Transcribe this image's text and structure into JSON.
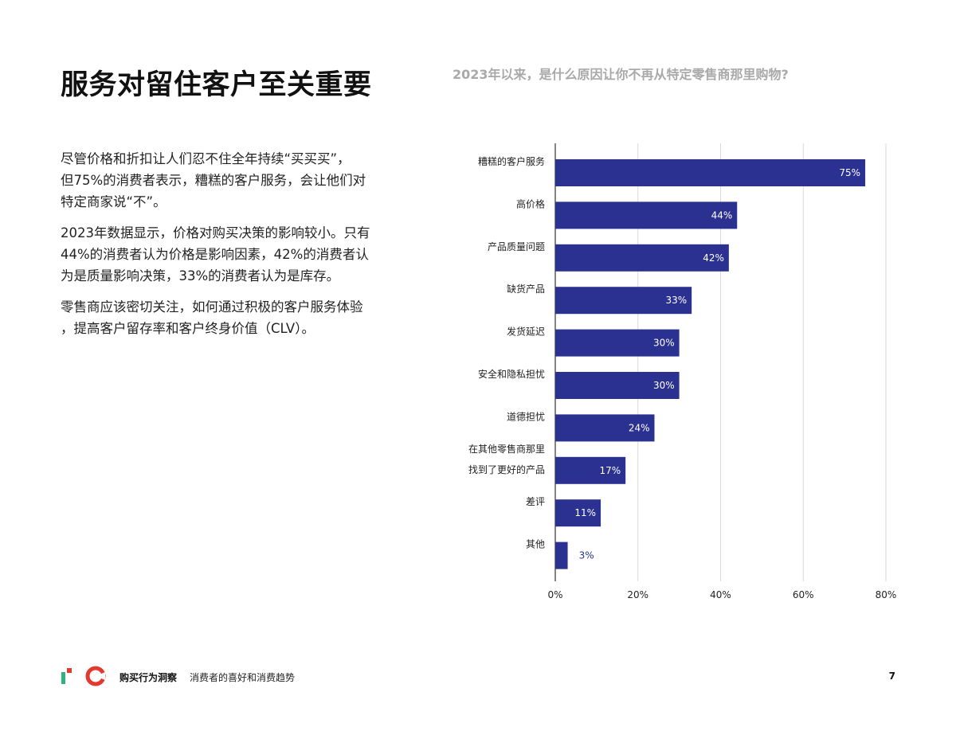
{
  "page": {
    "title": "服务对留住客户至关重要",
    "paragraphs": [
      [
        "尽管价格和折扣让人们忍不住全年持续“买买买”，",
        "但75%的消费者表示，糟糕的客户服务，会让他们对",
        "特定商家说“不”。"
      ],
      [
        "2023年数据显示，价格对购买决策的影响较小。只有",
        "44%的消费者认为价格是影响因素，42%的消费者认",
        "为是质量影响决策，33%的消费者认为是库存。"
      ],
      [
        "零售商应该密切关注，如何通过积极的客户服务体验",
        "，提高客户留存率和客户终身价值（CLV）。"
      ]
    ]
  },
  "chart_data": {
    "type": "bar",
    "orientation": "horizontal",
    "title": "2023年以来，是什么原因让你不再从特定零售商那里购物?",
    "categories": [
      "糟糕的客户服务",
      "高价格",
      "产品质量问题",
      "缺货产品",
      "发货延迟",
      "安全和隐私担忧",
      "道德担忧",
      "在其他零售商那里\n找到了更好的产品",
      "差评",
      "其他"
    ],
    "values": [
      75,
      44,
      42,
      33,
      30,
      30,
      24,
      17,
      11,
      3
    ],
    "data_labels": [
      "75%",
      "44%",
      "42%",
      "33%",
      "30%",
      "30%",
      "24%",
      "17%",
      "11%",
      "3%"
    ],
    "xlim": [
      0,
      80
    ],
    "x_ticks": [
      0,
      20,
      40,
      60,
      80
    ],
    "x_tick_labels": [
      "0%",
      "20%",
      "40%",
      "60%",
      "80%"
    ],
    "xlabel": "",
    "ylabel": "",
    "grid": "vertical",
    "bar_color": "#2b3191",
    "label_inside_color": "#ffffff",
    "label_outside_color": "#2b3191"
  },
  "footer": {
    "brand": "购买行为洞察",
    "subtitle": "消费者的喜好和消费趋势",
    "page_number": "7"
  },
  "colors": {
    "logo_green": "#2eb37c",
    "logo_red": "#e23a30"
  }
}
